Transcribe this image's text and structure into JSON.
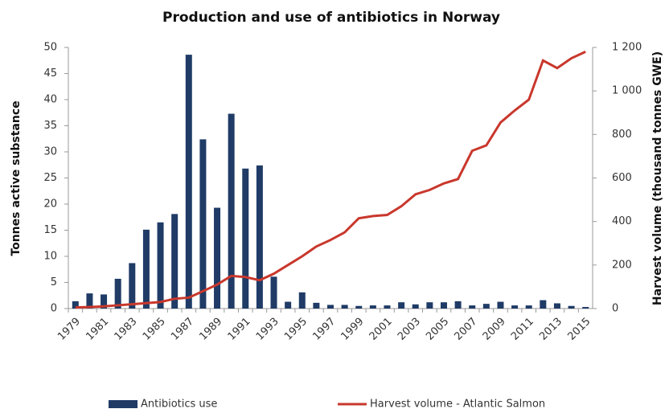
{
  "chart_data": {
    "type": "bar-line",
    "title": "Production and use of antibiotics in Norway",
    "y_label": "Tonnes active substance",
    "y2_label": "Harvest volume (thousand tonnes GWE)",
    "categories": [
      "1979",
      null,
      "1981",
      null,
      "1983",
      null,
      "1985",
      null,
      "1987",
      null,
      "1989",
      null,
      "1991",
      null,
      "1993",
      null,
      "1995",
      null,
      "1997",
      null,
      "1999",
      null,
      "2001",
      null,
      "2003",
      null,
      "2005",
      null,
      "2007",
      null,
      "2009",
      null,
      "2011",
      null,
      "2013",
      null,
      "2015"
    ],
    "series": [
      {
        "name": "Antibiotics use",
        "type": "bar",
        "color": "#1f3b66",
        "values": [
          1.4,
          2.9,
          2.7,
          5.7,
          8.7,
          15.1,
          16.5,
          18.1,
          48.6,
          32.4,
          19.3,
          37.3,
          26.8,
          27.4,
          6.1,
          1.3,
          3.1,
          1.1,
          0.7,
          0.7,
          0.5,
          0.6,
          0.6,
          1.2,
          0.8,
          1.2,
          1.2,
          1.4,
          0.6,
          0.9,
          1.3,
          0.6,
          0.6,
          1.6,
          1.0,
          0.5,
          0.3
        ]
      },
      {
        "name": "Harvest volume - Atlantic Salmon",
        "type": "line",
        "axis": "y2",
        "color": "#c9372c",
        "values": [
          5,
          7,
          10,
          15,
          20,
          25,
          30,
          45,
          50,
          80,
          110,
          150,
          145,
          130,
          160,
          200,
          240,
          285,
          315,
          350,
          415,
          425,
          430,
          470,
          525,
          545,
          575,
          595,
          725,
          750,
          855,
          910,
          960,
          1140,
          1105,
          1150,
          1180
        ]
      }
    ],
    "ylim": [
      0,
      50
    ],
    "yticks": [
      0,
      5,
      10,
      15,
      20,
      25,
      30,
      35,
      40,
      45,
      50
    ],
    "y2lim": [
      0,
      1200
    ],
    "y2ticks": [
      0,
      200,
      400,
      600,
      800,
      {
        "value": 1000,
        "label": "1 000"
      },
      {
        "value": 1200,
        "label": "1 200"
      }
    ],
    "grid": false,
    "legend": "bottom"
  }
}
